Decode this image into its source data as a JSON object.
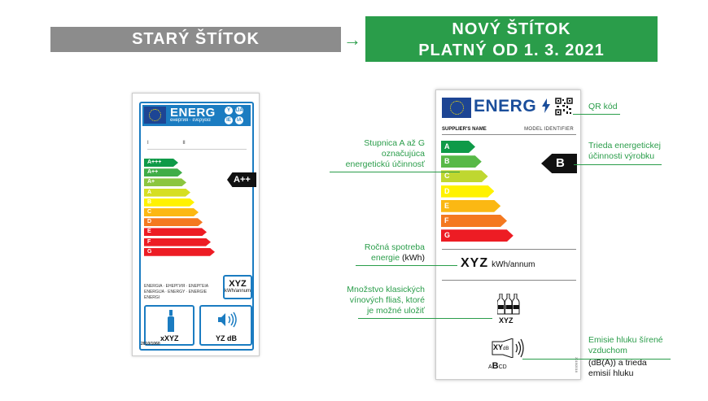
{
  "header": {
    "old_title": "STARÝ ŠTÍTOK",
    "new_title_line1": "NOVÝ ŠTÍTOK",
    "new_title_line2": "PLATNÝ OD 1. 3. 2021"
  },
  "old_label": {
    "energ": "ENERG",
    "subtitle": "енергия · ενεργεια",
    "badges": [
      "Y",
      "IJA",
      "IE",
      "IA"
    ],
    "roman": [
      "I",
      "II"
    ],
    "classes": [
      "A+++",
      "A++",
      "A+",
      "A",
      "B",
      "C",
      "D",
      "E",
      "F",
      "G"
    ],
    "class_colors": [
      "#0e9a48",
      "#3fad47",
      "#8cc63f",
      "#d6df22",
      "#fff200",
      "#fcb813",
      "#f47920",
      "#ed1c24",
      "#ed1c24",
      "#ed1c24"
    ],
    "rating": "A++",
    "multilang_text": "ENERGIA · ЕНЕРГИЯ · ENEPΓEIA ENERGIJA · ENERGY · ENERGIE ENERGI",
    "kwh_value": "XYZ",
    "kwh_unit": "kWh/annum",
    "bottles_text": "xXYZ",
    "noise_text": "YZ dB",
    "regulation": "2010/1060"
  },
  "new_label": {
    "energ": "ENERG",
    "supplier": "SUPPLIER'S NAME",
    "model": "MODEL IDENTIFIER",
    "classes": [
      "A",
      "B",
      "C",
      "D",
      "E",
      "F",
      "G"
    ],
    "class_colors": [
      "#0e9a48",
      "#57b947",
      "#bfd730",
      "#fff200",
      "#fbb813",
      "#f47920",
      "#ed1c24"
    ],
    "rating": "B",
    "kwh_value": "XYZ",
    "kwh_unit": "kWh/annum",
    "bottles_value": "XYZ",
    "noise_value": "XY",
    "noise_unit": "dB",
    "noise_class_left": "A",
    "noise_class_mid": "B",
    "noise_class_right": "CD",
    "regulation": "2019/2016"
  },
  "annotations": {
    "qr": "QR kód",
    "scale_line1": "Stupnica A až G",
    "scale_line2": "označujúca",
    "scale_line3": "energetickú účinnosť",
    "class_line1": "Trieda energetickej",
    "class_line2": "účinnosti výrobku",
    "consumption_line1": "Ročná spotreba",
    "consumption_line2": "energie",
    "consumption_unit": "(kWh)",
    "bottles_line1": "Množstvo klasických",
    "bottles_line2": "vínových fliaš, ktoré",
    "bottles_line3": "je možné uložiť",
    "noise_line1": "Emisie hluku šírené",
    "noise_line2": "vzduchom",
    "noise_line3": "(dB(A)) a trieda",
    "noise_line4": "emisií hluku"
  },
  "colors": {
    "green_accent": "#2a9d4a",
    "grey_header": "#8c8c8c",
    "eu_blue": "#1d4594",
    "old_label_blue": "#1b7cc1"
  }
}
